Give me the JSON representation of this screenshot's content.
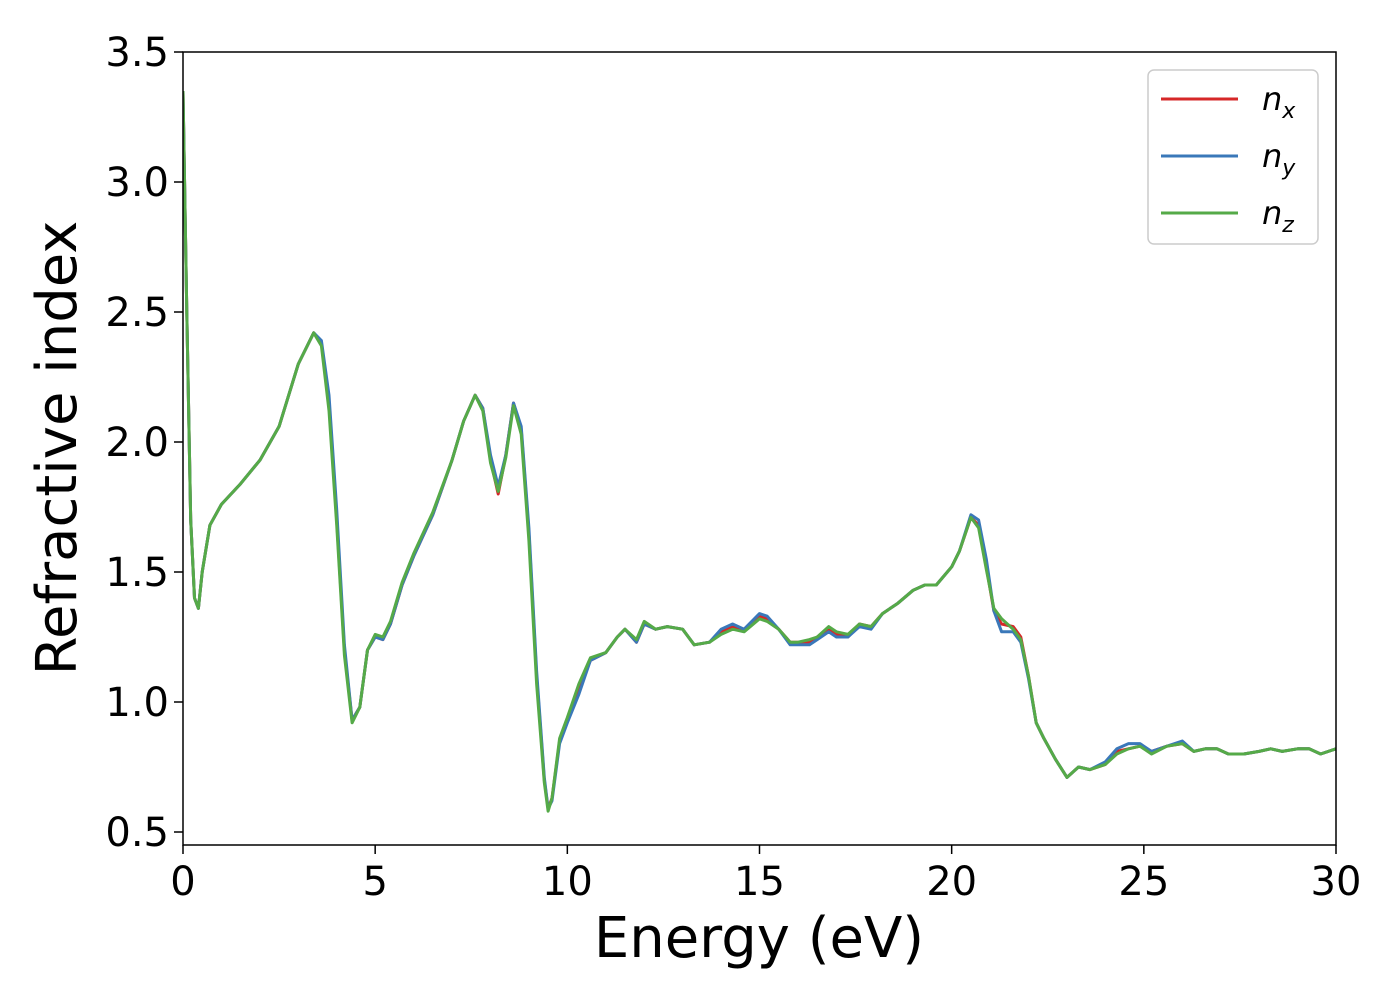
{
  "chart_data": {
    "type": "line",
    "title": "",
    "xlabel": "Energy (eV)",
    "ylabel": "Refractive index",
    "xlim": [
      0,
      30
    ],
    "ylim": [
      0.45,
      3.5
    ],
    "xticks": [
      0,
      5,
      10,
      15,
      20,
      25,
      30
    ],
    "xtick_labels": [
      "0",
      "5",
      "10",
      "15",
      "20",
      "25",
      "30"
    ],
    "yticks": [
      0.5,
      1.0,
      1.5,
      2.0,
      2.5,
      3.0,
      3.5
    ],
    "ytick_labels": [
      "0.5",
      "1.0",
      "1.5",
      "2.0",
      "2.5",
      "3.0",
      "3.5"
    ],
    "grid": false,
    "legend_position": "top-right",
    "series": [
      {
        "name": "n",
        "subscript": "x",
        "color": "#d62728",
        "x": [
          0,
          0.1,
          0.2,
          0.3,
          0.4,
          0.5,
          0.7,
          1.0,
          1.5,
          2.0,
          2.5,
          3.0,
          3.4,
          3.6,
          3.8,
          4.0,
          4.2,
          4.4,
          4.6,
          4.8,
          5.0,
          5.2,
          5.4,
          5.7,
          6.0,
          6.5,
          7.0,
          7.3,
          7.6,
          7.8,
          8.0,
          8.2,
          8.4,
          8.6,
          8.8,
          9.0,
          9.2,
          9.4,
          9.5,
          9.6,
          9.8,
          10.0,
          10.3,
          10.6,
          11.0,
          11.3,
          11.5,
          11.8,
          12.0,
          12.3,
          12.6,
          13.0,
          13.3,
          13.7,
          14.0,
          14.3,
          14.6,
          15.0,
          15.2,
          15.5,
          15.8,
          16.0,
          16.3,
          16.5,
          16.8,
          17.0,
          17.3,
          17.6,
          17.9,
          18.2,
          18.6,
          19.0,
          19.3,
          19.6,
          20.0,
          20.2,
          20.5,
          20.7,
          20.9,
          21.1,
          21.3,
          21.6,
          21.8,
          22.0,
          22.2,
          22.4,
          22.7,
          23.0,
          23.3,
          23.6,
          24.0,
          24.3,
          24.6,
          24.9,
          25.2,
          25.6,
          26.0,
          26.3,
          26.6,
          26.9,
          27.2,
          27.6,
          28.0,
          28.3,
          28.6,
          29.0,
          29.3,
          29.6,
          30.0
        ],
        "y": [
          3.35,
          2.5,
          1.7,
          1.4,
          1.36,
          1.5,
          1.68,
          1.76,
          1.84,
          1.93,
          2.06,
          2.3,
          2.42,
          2.38,
          2.15,
          1.7,
          1.2,
          0.93,
          0.98,
          1.2,
          1.25,
          1.24,
          1.3,
          1.45,
          1.56,
          1.72,
          1.93,
          2.08,
          2.18,
          2.13,
          1.93,
          1.8,
          1.95,
          2.15,
          2.05,
          1.65,
          1.1,
          0.7,
          0.59,
          0.63,
          0.85,
          0.93,
          1.05,
          1.16,
          1.19,
          1.25,
          1.28,
          1.23,
          1.3,
          1.28,
          1.29,
          1.28,
          1.22,
          1.23,
          1.27,
          1.29,
          1.28,
          1.33,
          1.32,
          1.28,
          1.23,
          1.23,
          1.23,
          1.25,
          1.28,
          1.26,
          1.25,
          1.3,
          1.29,
          1.34,
          1.38,
          1.43,
          1.45,
          1.45,
          1.52,
          1.58,
          1.71,
          1.68,
          1.52,
          1.35,
          1.3,
          1.29,
          1.25,
          1.1,
          0.92,
          0.86,
          0.78,
          0.71,
          0.75,
          0.74,
          0.76,
          0.81,
          0.82,
          0.83,
          0.81,
          0.83,
          0.84,
          0.81,
          0.82,
          0.82,
          0.8,
          0.8,
          0.81,
          0.82,
          0.81,
          0.82,
          0.82,
          0.8,
          0.82
        ]
      },
      {
        "name": "n",
        "subscript": "y",
        "color": "#3a78b9",
        "x": [
          0,
          0.1,
          0.2,
          0.3,
          0.4,
          0.5,
          0.7,
          1.0,
          1.5,
          2.0,
          2.5,
          3.0,
          3.4,
          3.6,
          3.8,
          4.0,
          4.2,
          4.4,
          4.6,
          4.8,
          5.0,
          5.2,
          5.4,
          5.7,
          6.0,
          6.5,
          7.0,
          7.3,
          7.6,
          7.8,
          8.0,
          8.2,
          8.4,
          8.6,
          8.8,
          9.0,
          9.2,
          9.4,
          9.5,
          9.6,
          9.8,
          10.0,
          10.3,
          10.6,
          11.0,
          11.3,
          11.5,
          11.8,
          12.0,
          12.3,
          12.6,
          13.0,
          13.3,
          13.7,
          14.0,
          14.3,
          14.6,
          15.0,
          15.2,
          15.5,
          15.8,
          16.0,
          16.3,
          16.5,
          16.8,
          17.0,
          17.3,
          17.6,
          17.9,
          18.2,
          18.6,
          19.0,
          19.3,
          19.6,
          20.0,
          20.2,
          20.5,
          20.7,
          20.9,
          21.1,
          21.3,
          21.6,
          21.8,
          22.0,
          22.2,
          22.4,
          22.7,
          23.0,
          23.3,
          23.6,
          24.0,
          24.3,
          24.6,
          24.9,
          25.2,
          25.6,
          26.0,
          26.3,
          26.6,
          26.9,
          27.2,
          27.6,
          28.0,
          28.3,
          28.6,
          29.0,
          29.3,
          29.6,
          30.0
        ],
        "y": [
          3.35,
          2.5,
          1.7,
          1.4,
          1.36,
          1.5,
          1.68,
          1.76,
          1.84,
          1.93,
          2.06,
          2.3,
          2.42,
          2.39,
          2.18,
          1.74,
          1.22,
          0.93,
          0.98,
          1.2,
          1.25,
          1.24,
          1.3,
          1.45,
          1.56,
          1.72,
          1.93,
          2.08,
          2.18,
          2.13,
          1.95,
          1.83,
          1.95,
          2.15,
          2.06,
          1.67,
          1.12,
          0.71,
          0.59,
          0.62,
          0.84,
          0.92,
          1.03,
          1.16,
          1.19,
          1.25,
          1.28,
          1.23,
          1.3,
          1.28,
          1.29,
          1.28,
          1.22,
          1.23,
          1.28,
          1.3,
          1.28,
          1.34,
          1.33,
          1.28,
          1.22,
          1.22,
          1.22,
          1.24,
          1.27,
          1.25,
          1.25,
          1.29,
          1.28,
          1.34,
          1.38,
          1.43,
          1.45,
          1.45,
          1.52,
          1.58,
          1.72,
          1.7,
          1.55,
          1.35,
          1.27,
          1.27,
          1.23,
          1.09,
          0.92,
          0.86,
          0.78,
          0.71,
          0.75,
          0.74,
          0.77,
          0.82,
          0.84,
          0.84,
          0.81,
          0.83,
          0.85,
          0.81,
          0.82,
          0.82,
          0.8,
          0.8,
          0.81,
          0.82,
          0.81,
          0.82,
          0.82,
          0.8,
          0.82
        ]
      },
      {
        "name": "n",
        "subscript": "z",
        "color": "#55aa48",
        "x": [
          0,
          0.1,
          0.2,
          0.3,
          0.4,
          0.5,
          0.7,
          1.0,
          1.5,
          2.0,
          2.5,
          3.0,
          3.4,
          3.6,
          3.8,
          4.0,
          4.2,
          4.4,
          4.6,
          4.8,
          5.0,
          5.2,
          5.4,
          5.7,
          6.0,
          6.5,
          7.0,
          7.3,
          7.6,
          7.8,
          8.0,
          8.2,
          8.4,
          8.6,
          8.8,
          9.0,
          9.2,
          9.4,
          9.5,
          9.6,
          9.8,
          10.0,
          10.3,
          10.6,
          11.0,
          11.3,
          11.5,
          11.8,
          12.0,
          12.3,
          12.6,
          13.0,
          13.3,
          13.7,
          14.0,
          14.3,
          14.6,
          15.0,
          15.2,
          15.5,
          15.8,
          16.0,
          16.3,
          16.5,
          16.8,
          17.0,
          17.3,
          17.6,
          17.9,
          18.2,
          18.6,
          19.0,
          19.3,
          19.6,
          20.0,
          20.2,
          20.5,
          20.7,
          20.9,
          21.1,
          21.3,
          21.6,
          21.8,
          22.0,
          22.2,
          22.4,
          22.7,
          23.0,
          23.3,
          23.6,
          24.0,
          24.3,
          24.6,
          24.9,
          25.2,
          25.6,
          26.0,
          26.3,
          26.6,
          26.9,
          27.2,
          27.6,
          28.0,
          28.3,
          28.6,
          29.0,
          29.3,
          29.6,
          30.0
        ],
        "y": [
          3.35,
          2.5,
          1.7,
          1.4,
          1.36,
          1.5,
          1.68,
          1.76,
          1.84,
          1.93,
          2.06,
          2.3,
          2.42,
          2.37,
          2.12,
          1.68,
          1.18,
          0.92,
          0.98,
          1.2,
          1.26,
          1.25,
          1.31,
          1.46,
          1.57,
          1.73,
          1.93,
          2.08,
          2.18,
          2.12,
          1.92,
          1.81,
          1.94,
          2.14,
          2.03,
          1.62,
          1.07,
          0.69,
          0.58,
          0.63,
          0.86,
          0.94,
          1.07,
          1.17,
          1.19,
          1.25,
          1.28,
          1.24,
          1.31,
          1.28,
          1.29,
          1.28,
          1.22,
          1.23,
          1.26,
          1.28,
          1.27,
          1.32,
          1.31,
          1.28,
          1.23,
          1.23,
          1.24,
          1.25,
          1.29,
          1.27,
          1.26,
          1.3,
          1.29,
          1.34,
          1.38,
          1.43,
          1.45,
          1.45,
          1.52,
          1.58,
          1.71,
          1.67,
          1.51,
          1.36,
          1.32,
          1.28,
          1.24,
          1.1,
          0.92,
          0.86,
          0.78,
          0.71,
          0.75,
          0.74,
          0.76,
          0.8,
          0.82,
          0.83,
          0.8,
          0.83,
          0.84,
          0.81,
          0.82,
          0.82,
          0.8,
          0.8,
          0.81,
          0.82,
          0.81,
          0.82,
          0.82,
          0.8,
          0.82
        ]
      }
    ]
  }
}
